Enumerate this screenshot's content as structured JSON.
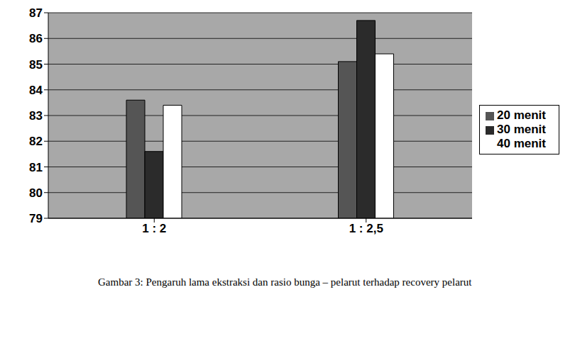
{
  "chart_data": {
    "type": "bar",
    "title": "Gambar 3: Pengaruh lama ekstraksi dan rasio bunga – pelarut terhadap recovery pelarut",
    "categories": [
      "1 : 2",
      "1 : 2,5"
    ],
    "series": [
      {
        "name": "20 menit",
        "color": "#555555",
        "values": [
          83.6,
          85.1
        ]
      },
      {
        "name": "30 menit",
        "color": "#2b2b2b",
        "values": [
          81.6,
          86.7
        ]
      },
      {
        "name": "40 menit",
        "color": "#ffffff",
        "values": [
          83.4,
          85.4
        ]
      }
    ],
    "ylim": [
      79,
      87
    ],
    "yticks": [
      79,
      80,
      81,
      82,
      83,
      84,
      85,
      86,
      87
    ],
    "grid": true,
    "legend": "right"
  }
}
